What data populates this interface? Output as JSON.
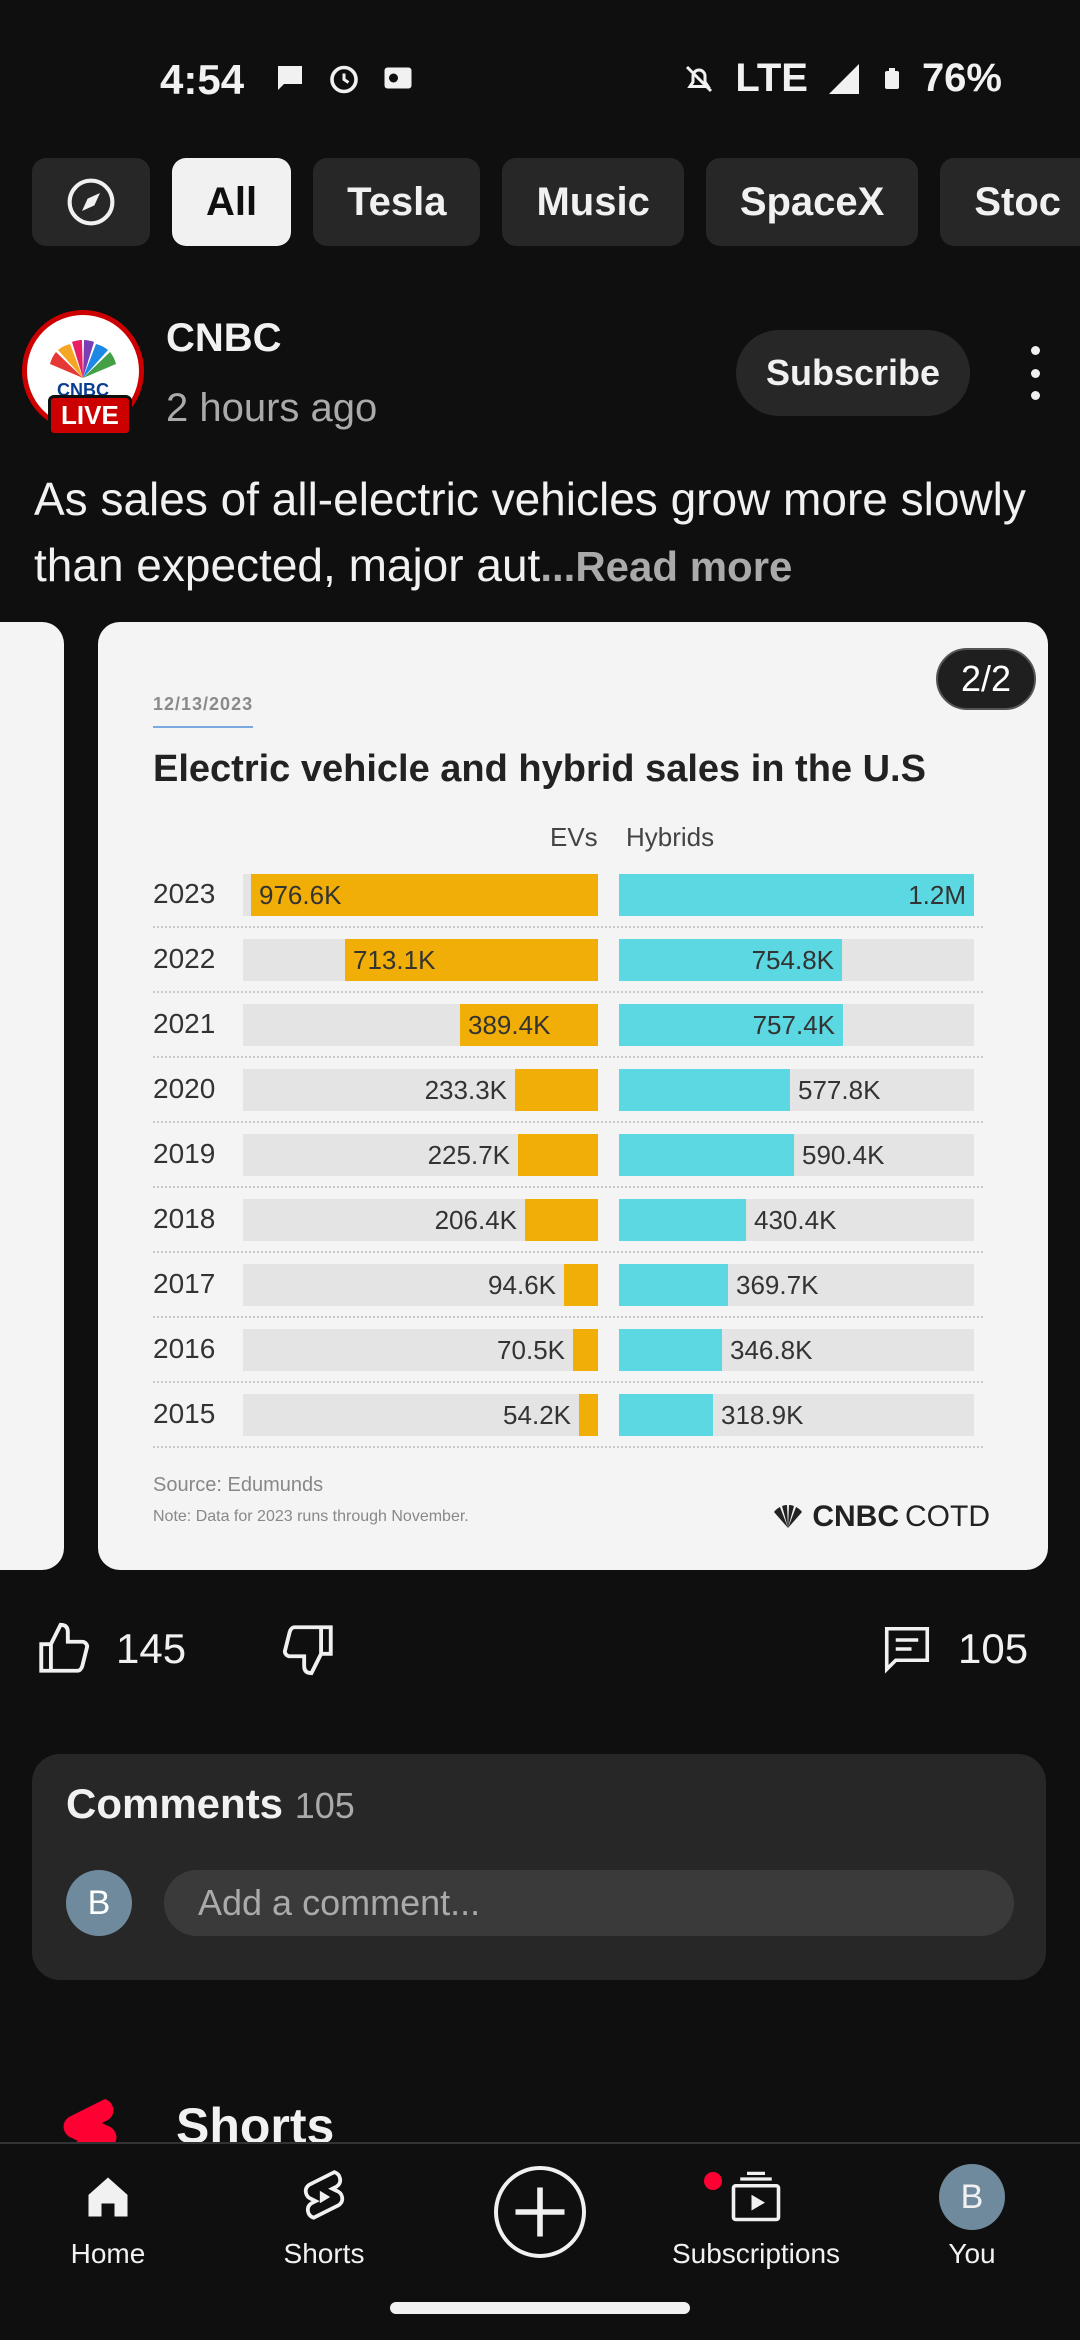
{
  "status_bar": {
    "time": "4:54",
    "network": "LTE",
    "battery": "76%"
  },
  "chips": [
    {
      "label": "All"
    },
    {
      "label": "Tesla"
    },
    {
      "label": "Music"
    },
    {
      "label": "SpaceX"
    },
    {
      "label": "Stoc"
    }
  ],
  "post": {
    "avatar_text": "CNBC",
    "live_badge": "LIVE",
    "channel": "CNBC",
    "time_ago": "2 hours ago",
    "subscribe_label": "Subscribe",
    "text": "As sales of all-electric vehicles grow more slowly than expected, major aut",
    "read_more": "...Read more",
    "image_counter": "2/2"
  },
  "chart_data": {
    "type": "bar",
    "date": "12/13/2023",
    "title": "Electric vehicle and hybrid sales in the U.S",
    "categories": [
      "2023",
      "2022",
      "2021",
      "2020",
      "2019",
      "2018",
      "2017",
      "2016",
      "2015"
    ],
    "series": [
      {
        "name": "EVs",
        "values": [
          976.6,
          713.1,
          389.4,
          233.3,
          225.7,
          206.4,
          94.6,
          70.5,
          54.2
        ],
        "labels": [
          "976.6K",
          "713.1K",
          "389.4K",
          "233.3K",
          "225.7K",
          "206.4K",
          "94.6K",
          "70.5K",
          "54.2K"
        ],
        "color": "#f1ae06"
      },
      {
        "name": "Hybrids",
        "values": [
          1200,
          754.8,
          757.4,
          577.8,
          590.4,
          430.4,
          369.7,
          346.8,
          318.9
        ],
        "labels": [
          "1.2M",
          "754.8K",
          "757.4K",
          "577.8K",
          "590.4K",
          "430.4K",
          "369.7K",
          "346.8K",
          "318.9K"
        ],
        "color": "#5bd8e2"
      }
    ],
    "unit": "thousands",
    "source": "Source: Edumunds",
    "note": "Note: Data for 2023 runs through November.",
    "brand_bold": "CNBC",
    "brand_light": "COTD"
  },
  "actions": {
    "likes": "145",
    "comments": "105"
  },
  "comments": {
    "title": "Comments",
    "count": "105",
    "user_initial": "B",
    "placeholder": "Add a comment..."
  },
  "shorts_section": {
    "title": "Shorts"
  },
  "nav": {
    "home": "Home",
    "shorts": "Shorts",
    "subscriptions": "Subscriptions",
    "you": "You",
    "you_initial": "B"
  }
}
